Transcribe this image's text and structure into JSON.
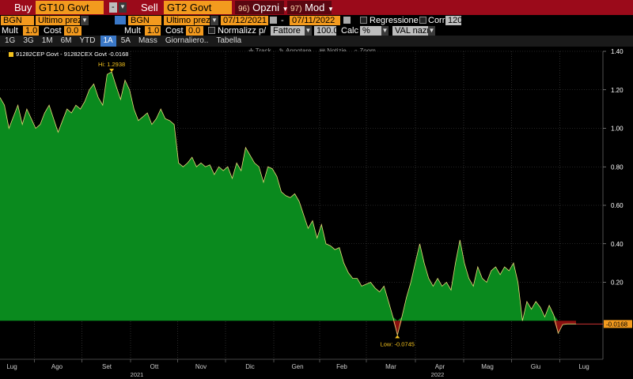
{
  "toolbar": {
    "buy_label": "Buy",
    "buy_ticker": "GT10 Govt",
    "buy_dash": "-",
    "sell_label": "Sell",
    "sell_ticker": "GT2 Govt",
    "opzni_num": "96)",
    "opzni_label": "Opzni",
    "mod_num": "97)",
    "mod_label": "Mod"
  },
  "row2": {
    "src1": "BGN",
    "field1": "Ultimo prez",
    "src2": "BGN",
    "field2": "Ultimo prez",
    "date_from": "07/12/2021",
    "date_sep": "-",
    "date_to": "07/11/2022",
    "regressione_label": "Regressione",
    "corr_label": "Corr",
    "corr_value": "120",
    "mult1_label": "Mult",
    "mult1_value": "1.0",
    "cost1_label": "Cost",
    "cost1_value": "0.0",
    "mult2_label": "Mult",
    "mult2_value": "1.0",
    "cost2_label": "Cost",
    "cost2_value": "0.0",
    "normalizz_label": "Normalizz p/",
    "fattore_value": "Fattore",
    "fattore_number": "100.0",
    "calc_label": "Calc",
    "calc_value": "%",
    "val_value": "VAL nazn"
  },
  "tabs": [
    {
      "label": "1G"
    },
    {
      "label": "3G"
    },
    {
      "label": "1M"
    },
    {
      "label": "6M"
    },
    {
      "label": "YTD"
    },
    {
      "label": "1A"
    },
    {
      "label": "5A"
    },
    {
      "label": "Mass"
    },
    {
      "label": "Giornaliero.."
    },
    {
      "label": "Tabella"
    }
  ],
  "active_tab": "1A",
  "chart_tools": {
    "track": "Track",
    "annotate": "Annotare",
    "news": "Notizie",
    "zoom": "Zoom"
  },
  "chart_data": {
    "type": "area",
    "legend": "91282CEP Govt - 91282CEX Govt -0.0168",
    "series_color": "#0a8a1e",
    "negative_color": "#8a0f0f",
    "line_color": "#e8d878",
    "ylim": [
      -0.2,
      1.4
    ],
    "yticks": [
      1.4,
      1.2,
      1.0,
      0.8,
      0.6,
      0.4,
      0.2
    ],
    "months": [
      {
        "label": "Lug"
      },
      {
        "label": "Ago"
      },
      {
        "label": "Set"
      },
      {
        "label": "Ott"
      },
      {
        "label": "Nov"
      },
      {
        "label": "Dic"
      },
      {
        "label": "Gen"
      },
      {
        "label": "Feb"
      },
      {
        "label": "Mar"
      },
      {
        "label": "Apr"
      },
      {
        "label": "Mag"
      },
      {
        "label": "Giu"
      },
      {
        "label": "Lug"
      }
    ],
    "years": [
      {
        "label": "2021"
      },
      {
        "label": "2022"
      }
    ],
    "hi_label": "Hi: 1.2938",
    "low_label": "Low: -0.0745",
    "last_value": "-0.0168",
    "values": [
      1.16,
      1.12,
      1.0,
      1.06,
      1.12,
      1.02,
      1.1,
      1.05,
      1.0,
      1.02,
      1.08,
      1.12,
      1.05,
      0.98,
      1.04,
      1.1,
      1.08,
      1.12,
      1.1,
      1.14,
      1.2,
      1.23,
      1.16,
      1.12,
      1.28,
      1.293,
      1.22,
      1.15,
      1.25,
      1.2,
      1.1,
      1.04,
      1.06,
      1.08,
      1.02,
      1.05,
      1.1,
      1.05,
      1.04,
      1.02,
      0.82,
      0.8,
      0.82,
      0.85,
      0.8,
      0.82,
      0.8,
      0.81,
      0.76,
      0.8,
      0.78,
      0.8,
      0.74,
      0.82,
      0.78,
      0.9,
      0.86,
      0.82,
      0.8,
      0.72,
      0.8,
      0.79,
      0.75,
      0.67,
      0.65,
      0.64,
      0.66,
      0.62,
      0.55,
      0.48,
      0.52,
      0.43,
      0.5,
      0.4,
      0.39,
      0.37,
      0.38,
      0.3,
      0.25,
      0.22,
      0.22,
      0.18,
      0.19,
      0.2,
      0.17,
      0.15,
      0.18,
      0.1,
      0.02,
      -0.0745,
      0.02,
      0.12,
      0.2,
      0.3,
      0.4,
      0.3,
      0.22,
      0.18,
      0.22,
      0.18,
      0.2,
      0.16,
      0.3,
      0.42,
      0.3,
      0.22,
      0.18,
      0.28,
      0.22,
      0.2,
      0.26,
      0.28,
      0.24,
      0.28,
      0.26,
      0.3,
      0.2,
      0.0,
      0.1,
      0.06,
      0.1,
      0.07,
      0.02,
      0.08,
      0.03,
      -0.065,
      -0.02,
      -0.0168,
      -0.0168,
      -0.0168
    ]
  }
}
